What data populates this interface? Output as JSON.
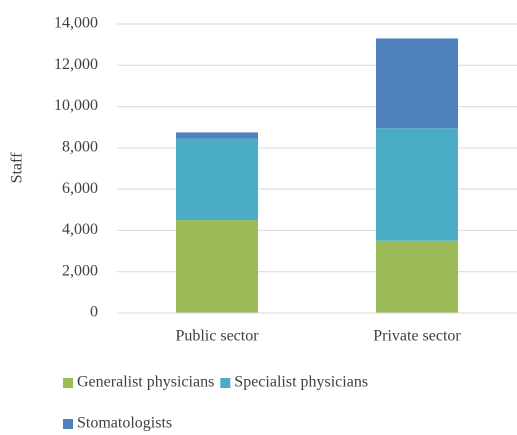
{
  "chart_data": {
    "type": "stacked-bar",
    "y_label": "Staff",
    "categories": [
      "Public sector",
      "Private sector"
    ],
    "series": [
      {
        "name": "Generalist physicians",
        "color": "#9bbb59",
        "values": [
          4500,
          3500
        ]
      },
      {
        "name": "Specialist physicians",
        "color": "#4bacc6",
        "values": [
          3950,
          5450
        ]
      },
      {
        "name": "Stomatologists",
        "color": "#4f81bd",
        "values": [
          300,
          4350
        ]
      }
    ],
    "ylim": [
      0,
      14000
    ],
    "yticks": [
      0,
      {
        "value": 2000,
        "label": "2,000"
      },
      {
        "value": 4000,
        "label": "4,000"
      },
      {
        "value": 6000,
        "label": "6,000"
      },
      {
        "value": 8000,
        "label": "8,000"
      },
      {
        "value": 10000,
        "label": "10,000"
      },
      {
        "value": 12000,
        "label": "12,000"
      },
      {
        "value": 14000,
        "label": "14,000"
      }
    ],
    "grid": true,
    "legend": "bottom"
  }
}
